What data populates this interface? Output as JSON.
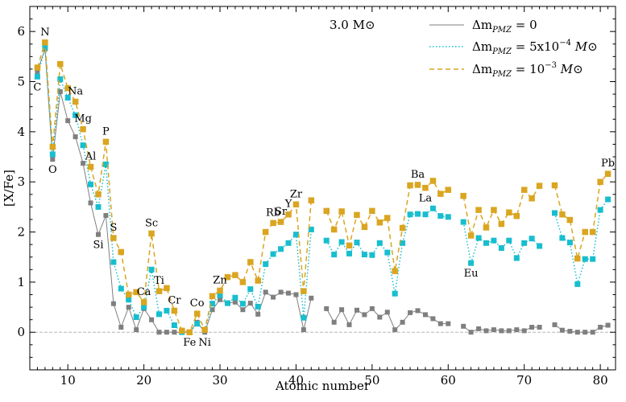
{
  "chart_data": {
    "type": "line",
    "xlabel": "Atomic number",
    "ylabel": "[X/Fe]",
    "xlim": [
      5,
      82
    ],
    "ylim": [
      -0.75,
      6.5
    ],
    "xticks": [
      10,
      20,
      30,
      40,
      50,
      60,
      70,
      80
    ],
    "yticks": [
      0,
      1,
      2,
      3,
      4,
      5,
      6
    ],
    "grid": false,
    "legend_position": "top-right",
    "annotation": "3.0 M⊙",
    "reference_line": 0,
    "colors": {
      "zero": "#7f7f7f",
      "mid": "#17becf",
      "high": "#daa520"
    },
    "series": [
      {
        "name": "Δm_PMZ = 0",
        "legend_text": "Δm",
        "legend_sub": "PMZ",
        "legend_suffix": " = 0",
        "style": "solid",
        "color": "#7f7f7f",
        "x": [
          6,
          7,
          8,
          9,
          10,
          11,
          12,
          13,
          14,
          15,
          16,
          17,
          18,
          19,
          20,
          21,
          22,
          23,
          24,
          25,
          26,
          27,
          28,
          29,
          30,
          31,
          32,
          33,
          34,
          35,
          36,
          37,
          38,
          39,
          40,
          41,
          42,
          44,
          45,
          46,
          47,
          48,
          49,
          50,
          51,
          52,
          53,
          54,
          55,
          56,
          57,
          58,
          59,
          60,
          62,
          63,
          64,
          65,
          66,
          67,
          68,
          69,
          70,
          71,
          72,
          74,
          75,
          76,
          77,
          78,
          79,
          80,
          81
        ],
        "y": [
          5.2,
          5.65,
          3.45,
          4.8,
          4.22,
          3.9,
          3.37,
          2.58,
          1.95,
          2.33,
          0.57,
          0.1,
          0.5,
          0.05,
          0.47,
          0.25,
          0.0,
          0.0,
          0.0,
          0.0,
          0.0,
          0.2,
          0.0,
          0.45,
          0.65,
          0.58,
          0.6,
          0.45,
          0.58,
          0.36,
          0.8,
          0.7,
          0.8,
          0.78,
          0.75,
          0.05,
          0.68,
          0.47,
          0.2,
          0.45,
          0.15,
          0.44,
          0.35,
          0.47,
          0.3,
          0.4,
          0.05,
          0.2,
          0.39,
          0.43,
          0.35,
          0.27,
          0.17,
          0.17,
          0.12,
          0.0,
          0.07,
          0.03,
          0.05,
          0.03,
          0.03,
          0.05,
          0.03,
          0.1,
          0.1,
          0.15,
          0.04,
          0.02,
          0.0,
          0.0,
          0.0,
          0.1,
          0.14
        ]
      },
      {
        "name": "Δm_PMZ = 5x10^-4 M⊙",
        "legend_text": "Δm",
        "legend_sub": "PMZ",
        "legend_suffix": " = 5x10",
        "legend_sup": "−4",
        "legend_unit": " M⊙",
        "style": "dotted",
        "color": "#17becf",
        "x": [
          6,
          7,
          8,
          9,
          10,
          11,
          12,
          13,
          14,
          15,
          16,
          17,
          18,
          19,
          20,
          21,
          22,
          23,
          24,
          25,
          26,
          27,
          28,
          29,
          30,
          31,
          32,
          33,
          34,
          35,
          36,
          37,
          38,
          39,
          40,
          41,
          42,
          44,
          45,
          46,
          47,
          48,
          49,
          50,
          51,
          52,
          53,
          54,
          55,
          56,
          57,
          58,
          59,
          60,
          62,
          63,
          64,
          65,
          66,
          67,
          68,
          69,
          70,
          71,
          72,
          74,
          75,
          76,
          77,
          78,
          79,
          80,
          81
        ],
        "y": [
          5.1,
          5.68,
          3.55,
          5.05,
          4.68,
          4.33,
          3.73,
          2.95,
          2.5,
          3.35,
          1.4,
          0.87,
          0.65,
          0.3,
          0.5,
          1.25,
          0.36,
          0.43,
          0.14,
          0.0,
          0.0,
          0.17,
          0.05,
          0.57,
          0.74,
          0.58,
          0.69,
          0.57,
          0.86,
          0.51,
          1.36,
          1.56,
          1.66,
          1.78,
          1.95,
          0.29,
          2.05,
          1.83,
          1.55,
          1.8,
          1.57,
          1.79,
          1.55,
          1.54,
          1.78,
          1.59,
          0.77,
          1.78,
          2.35,
          2.36,
          2.35,
          2.47,
          2.32,
          2.3,
          2.2,
          1.38,
          1.88,
          1.78,
          1.83,
          1.68,
          1.83,
          1.48,
          1.78,
          1.87,
          1.72,
          2.38,
          1.88,
          1.79,
          0.96,
          1.46,
          1.46,
          2.44,
          2.65
        ]
      },
      {
        "name": "Δm_PMZ = 10^-3 M⊙",
        "legend_text": "Δm",
        "legend_sub": "PMZ",
        "legend_suffix": " = 10",
        "legend_sup": "−3",
        "legend_unit": " M⊙",
        "style": "dashed",
        "color": "#daa520",
        "x": [
          6,
          7,
          8,
          9,
          10,
          11,
          12,
          13,
          14,
          15,
          16,
          17,
          18,
          19,
          20,
          21,
          22,
          23,
          24,
          25,
          26,
          27,
          28,
          29,
          30,
          31,
          32,
          33,
          34,
          35,
          36,
          37,
          38,
          39,
          40,
          41,
          42,
          44,
          45,
          46,
          47,
          48,
          49,
          50,
          51,
          52,
          53,
          54,
          55,
          56,
          57,
          58,
          59,
          60,
          62,
          63,
          64,
          65,
          66,
          67,
          68,
          69,
          70,
          71,
          72,
          74,
          75,
          76,
          77,
          78,
          79,
          80,
          81
        ],
        "y": [
          5.28,
          5.78,
          3.7,
          5.35,
          4.87,
          4.6,
          4.05,
          3.3,
          2.75,
          3.8,
          1.88,
          1.6,
          0.75,
          0.8,
          0.6,
          1.97,
          0.82,
          0.88,
          0.43,
          0.03,
          0.0,
          0.37,
          0.05,
          0.72,
          0.83,
          1.1,
          1.14,
          1.0,
          1.4,
          1.03,
          2.0,
          2.18,
          2.2,
          2.35,
          2.55,
          0.82,
          2.63,
          2.42,
          2.05,
          2.41,
          1.73,
          2.34,
          2.1,
          2.42,
          2.19,
          2.28,
          1.22,
          2.08,
          2.93,
          2.94,
          2.88,
          3.02,
          2.76,
          2.84,
          2.72,
          1.93,
          2.44,
          2.09,
          2.44,
          2.16,
          2.39,
          2.32,
          2.84,
          2.67,
          2.92,
          2.93,
          2.35,
          2.24,
          1.47,
          2.0,
          2.0,
          3.0,
          3.16
        ]
      }
    ],
    "element_labels": [
      {
        "text": "C",
        "x": 6,
        "y": 5.1,
        "pos": "below"
      },
      {
        "text": "N",
        "x": 7,
        "y": 5.78,
        "pos": "above"
      },
      {
        "text": "O",
        "x": 8,
        "y": 3.45,
        "pos": "below"
      },
      {
        "text": "Na",
        "x": 11,
        "y": 4.6,
        "pos": "above"
      },
      {
        "text": "Mg",
        "x": 12,
        "y": 4.05,
        "pos": "above"
      },
      {
        "text": "Al",
        "x": 13,
        "y": 3.3,
        "pos": "above"
      },
      {
        "text": "Si",
        "x": 14,
        "y": 1.95,
        "pos": "below"
      },
      {
        "text": "P",
        "x": 15,
        "y": 3.8,
        "pos": "above"
      },
      {
        "text": "S",
        "x": 16,
        "y": 1.88,
        "pos": "above"
      },
      {
        "text": "Ca",
        "x": 20,
        "y": 0.6,
        "pos": "above"
      },
      {
        "text": "Sc",
        "x": 21,
        "y": 1.97,
        "pos": "above"
      },
      {
        "text": "Ti",
        "x": 22,
        "y": 0.82,
        "pos": "above"
      },
      {
        "text": "Cr",
        "x": 24,
        "y": 0.43,
        "pos": "above"
      },
      {
        "text": "Fe",
        "x": 26,
        "y": 0.0,
        "pos": "below"
      },
      {
        "text": "Co",
        "x": 27,
        "y": 0.37,
        "pos": "above"
      },
      {
        "text": "Ni",
        "x": 28,
        "y": 0.0,
        "pos": "below"
      },
      {
        "text": "Zn",
        "x": 30,
        "y": 0.83,
        "pos": "above"
      },
      {
        "text": "Rb",
        "x": 37,
        "y": 2.18,
        "pos": "above"
      },
      {
        "text": "Sr",
        "x": 38,
        "y": 2.2,
        "pos": "above"
      },
      {
        "text": "Y",
        "x": 39,
        "y": 2.35,
        "pos": "above"
      },
      {
        "text": "Zr",
        "x": 40,
        "y": 2.55,
        "pos": "above"
      },
      {
        "text": "Ba",
        "x": 56,
        "y": 2.94,
        "pos": "above"
      },
      {
        "text": "La",
        "x": 57,
        "y": 2.88,
        "pos": "below"
      },
      {
        "text": "Eu",
        "x": 63,
        "y": 1.38,
        "pos": "below"
      },
      {
        "text": "Pb",
        "x": 81,
        "y": 3.16,
        "pos": "above"
      }
    ]
  }
}
